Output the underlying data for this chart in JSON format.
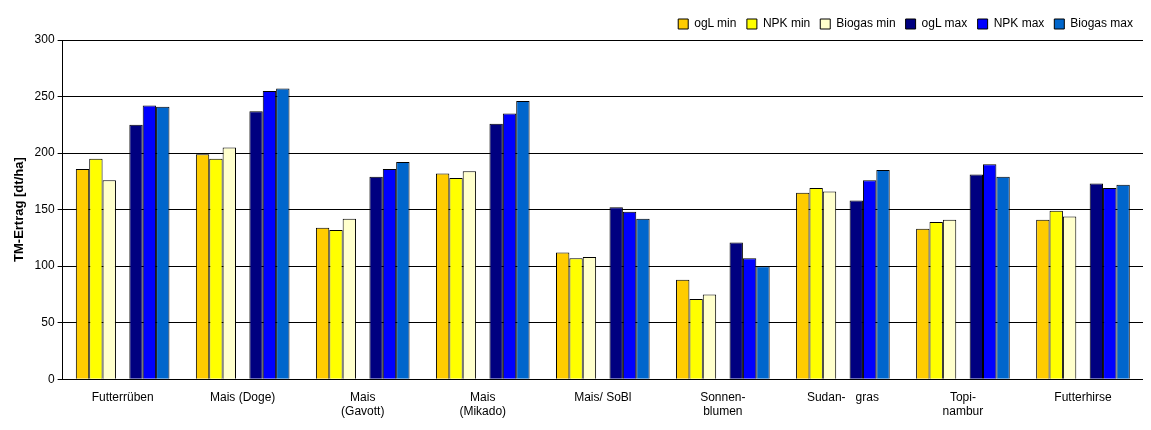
{
  "chart_data": {
    "type": "bar",
    "ylabel": "TM-Ertrag [dt/ha]",
    "categories": [
      "Futterrüben",
      "Mais (Doge)",
      "Mais\n(Gavott)",
      "Mais\n(Mikado)",
      "Mais/ SoBl",
      "Sonnen-\nblumen",
      "Sudan-   gras",
      "Topi-\nnambur",
      "Futterhirse"
    ],
    "series": [
      {
        "name": "ogL min",
        "color": "#ffcc00",
        "values": [
          186,
          199,
          134,
          182,
          112,
          88,
          165,
          133,
          141
        ]
      },
      {
        "name": "NPK min",
        "color": "#ffff00",
        "values": [
          195,
          195,
          132,
          178,
          107,
          71,
          169,
          139,
          149
        ]
      },
      {
        "name": "Biogas min",
        "color": "#ffffcc",
        "values": [
          176,
          205,
          142,
          184,
          108,
          75,
          166,
          141,
          144
        ]
      },
      {
        "name": "ogL max",
        "color": "#000080",
        "values": [
          225,
          237,
          179,
          226,
          152,
          121,
          158,
          181,
          173
        ]
      },
      {
        "name": "NPK max",
        "color": "#0000ff",
        "values": [
          242,
          255,
          186,
          235,
          148,
          107,
          176,
          190,
          169
        ]
      },
      {
        "name": "Biogas max",
        "color": "#0066cc",
        "values": [
          241,
          257,
          192,
          246,
          142,
          100,
          185,
          179,
          172
        ]
      }
    ],
    "ylim": [
      0,
      300
    ],
    "yticks": [
      0,
      50,
      100,
      150,
      200,
      250,
      300
    ],
    "grid": "y",
    "legend": "top right"
  }
}
